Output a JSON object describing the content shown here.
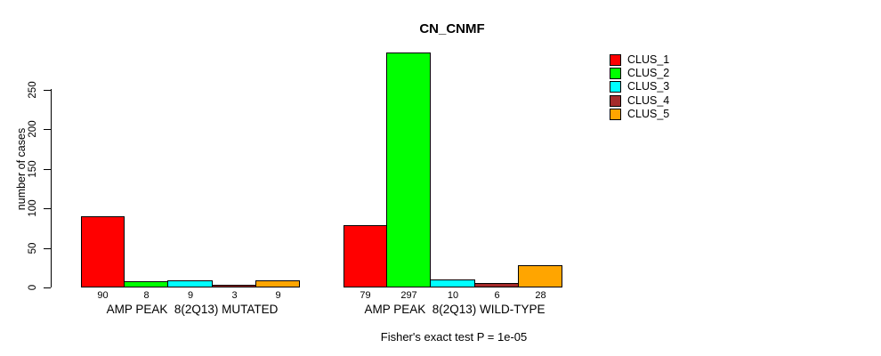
{
  "chart_data": {
    "type": "bar",
    "title": "CN_CNMF",
    "xlabel": "",
    "ylabel": "number of cases",
    "ylim": [
      0,
      250
    ],
    "yticks": [
      0,
      50,
      100,
      150,
      200,
      250
    ],
    "grid": false,
    "background_color": "#FFFFFF",
    "axis_color": "#000000",
    "bar_border_color": "#000000",
    "legend_position": "right-outside",
    "categories": [
      "AMP PEAK  8(2Q13) MUTATED",
      "AMP PEAK  8(2Q13) WILD-TYPE"
    ],
    "series": [
      {
        "name": "CLUS_1",
        "color": "#FF0000",
        "values": [
          90,
          79
        ]
      },
      {
        "name": "CLUS_2",
        "color": "#00FF00",
        "values": [
          8,
          297
        ]
      },
      {
        "name": "CLUS_3",
        "color": "#00FFFF",
        "values": [
          9,
          10
        ]
      },
      {
        "name": "CLUS_4",
        "color": "#A52A2A",
        "values": [
          3,
          6
        ]
      },
      {
        "name": "CLUS_5",
        "color": "#FFA500",
        "values": [
          9,
          28
        ]
      }
    ],
    "bar_value_labels": [
      [
        "90",
        "8",
        "9",
        "3",
        "9"
      ],
      [
        "79",
        "297",
        "10",
        "6",
        "28"
      ]
    ],
    "annotation": "Fisher's exact test P = 1e-05"
  }
}
